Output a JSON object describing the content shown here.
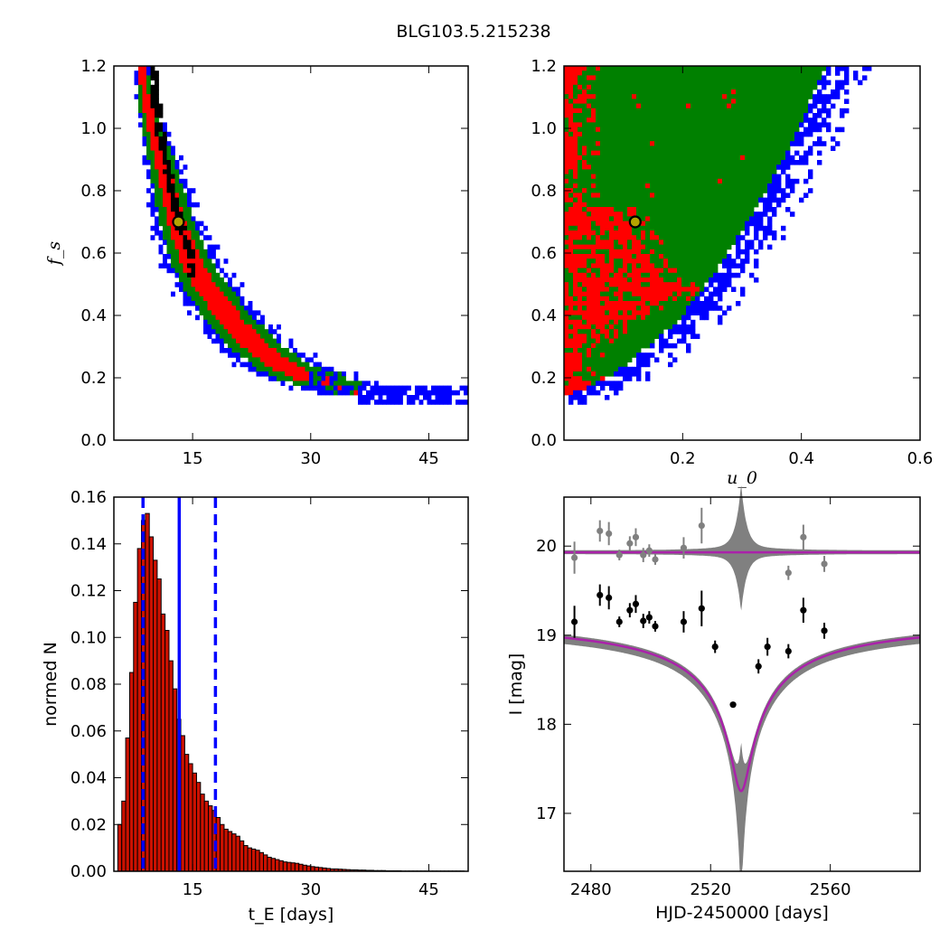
{
  "figure": {
    "title": "BLG103.5.215238"
  },
  "chart_data": [
    {
      "type": "heatmap",
      "name": "fs-vs-tE",
      "xlabel": "",
      "ylabel": "f_s",
      "xlim": [
        5,
        50
      ],
      "ylim": [
        0.0,
        1.2
      ],
      "xticks": [
        15,
        30,
        45
      ],
      "yticks": [
        0.0,
        0.2,
        0.4,
        0.6,
        0.8,
        1.0,
        1.2
      ],
      "levels": [
        "black",
        "red",
        "green",
        "blue"
      ],
      "ridge": [
        [
          8.5,
          1.2
        ],
        [
          9,
          1.1
        ],
        [
          10,
          1.0
        ],
        [
          11,
          0.9
        ],
        [
          12,
          0.8
        ],
        [
          13,
          0.7
        ],
        [
          14,
          0.63
        ],
        [
          15,
          0.56
        ],
        [
          17,
          0.48
        ],
        [
          20,
          0.38
        ],
        [
          23,
          0.3
        ],
        [
          27,
          0.23
        ],
        [
          31,
          0.19
        ],
        [
          36,
          0.16
        ],
        [
          42,
          0.14
        ],
        [
          49,
          0.13
        ]
      ],
      "black_ridge": [
        [
          10,
          1.18
        ],
        [
          10.5,
          1.05
        ],
        [
          11.5,
          0.9
        ],
        [
          12.5,
          0.78
        ],
        [
          13.5,
          0.68
        ],
        [
          15,
          0.58
        ]
      ],
      "best_fit": {
        "x": 13.2,
        "y": 0.7
      }
    },
    {
      "type": "heatmap",
      "name": "fs-vs-u0",
      "xlabel": "u_0",
      "ylabel": "",
      "xlim": [
        0.0,
        0.6
      ],
      "ylim": [
        0.0,
        1.2
      ],
      "xticks": [
        0.2,
        0.4,
        0.6
      ],
      "yticks": [
        0.0,
        0.2,
        0.4,
        0.6,
        0.8,
        1.0,
        1.2
      ],
      "green_boundary": [
        [
          0.0,
          0.13
        ],
        [
          0.05,
          0.17
        ],
        [
          0.1,
          0.22
        ],
        [
          0.15,
          0.3
        ],
        [
          0.2,
          0.38
        ],
        [
          0.25,
          0.5
        ],
        [
          0.3,
          0.64
        ],
        [
          0.35,
          0.8
        ],
        [
          0.4,
          0.98
        ],
        [
          0.45,
          1.2
        ]
      ],
      "red_region_u0_max": 0.22,
      "best_fit": {
        "x": 0.12,
        "y": 0.7
      }
    },
    {
      "type": "bar",
      "name": "tE-histogram",
      "xlabel": "t_E [days]",
      "ylabel": "normed N",
      "xlim": [
        5,
        50
      ],
      "ylim": [
        0.0,
        0.16
      ],
      "xticks": [
        15,
        30,
        45
      ],
      "yticks": [
        0.0,
        0.02,
        0.04,
        0.06,
        0.08,
        0.1,
        0.12,
        0.14,
        0.16
      ],
      "bin_start": 5.5,
      "bin_width": 0.5,
      "values": [
        0.02,
        0.03,
        0.057,
        0.085,
        0.115,
        0.138,
        0.15,
        0.153,
        0.143,
        0.133,
        0.125,
        0.11,
        0.103,
        0.09,
        0.078,
        0.065,
        0.058,
        0.05,
        0.046,
        0.042,
        0.038,
        0.033,
        0.03,
        0.028,
        0.026,
        0.023,
        0.02,
        0.018,
        0.017,
        0.016,
        0.015,
        0.013,
        0.011,
        0.01,
        0.0095,
        0.009,
        0.008,
        0.007,
        0.006,
        0.0055,
        0.005,
        0.0045,
        0.004,
        0.0038,
        0.0036,
        0.0034,
        0.003,
        0.0026,
        0.0023,
        0.002,
        0.0018,
        0.0016,
        0.0014,
        0.0012,
        0.001,
        0.001,
        0.0009,
        0.0008,
        0.0007,
        0.0006,
        0.0006,
        0.0005,
        0.0005,
        0.0004,
        0.0004,
        0.0003,
        0.0003,
        0.0003,
        0.0002,
        0.0002,
        0.0002,
        0.0002,
        0.0001,
        0.0001,
        0.0001,
        0.0001,
        0.0001,
        0.0001,
        0.0001,
        0.0001,
        0.0001,
        0.0001,
        0.0001,
        0.0001,
        0.0001,
        0.0001,
        0.0001,
        0.0001
      ],
      "solid_line": 13.3,
      "dashed_lines": [
        8.7,
        17.9
      ]
    },
    {
      "type": "line",
      "name": "light-curve",
      "xlabel": "HJD-2450000 [days]",
      "ylabel": "I [mag]",
      "xlim": [
        2471,
        2590
      ],
      "ylim": [
        20.55,
        16.35
      ],
      "xticks": [
        2480,
        2520,
        2560
      ],
      "yticks": [
        17,
        18,
        19,
        20
      ],
      "model": {
        "t0": 2530.2,
        "peak_mag": 17.25,
        "base_mag": 19.2,
        "width": 5.5
      },
      "model_band_peak": 16.35,
      "residual_baseline": 19.93,
      "points": [
        {
          "x": 2474.5,
          "y": 19.15,
          "e": 0.18
        },
        {
          "x": 2483,
          "y": 19.45,
          "e": 0.12
        },
        {
          "x": 2486,
          "y": 19.42,
          "e": 0.13
        },
        {
          "x": 2489.5,
          "y": 19.15,
          "e": 0.06
        },
        {
          "x": 2493,
          "y": 19.28,
          "e": 0.08
        },
        {
          "x": 2495,
          "y": 19.35,
          "e": 0.1
        },
        {
          "x": 2497.5,
          "y": 19.16,
          "e": 0.08
        },
        {
          "x": 2499.5,
          "y": 19.2,
          "e": 0.07
        },
        {
          "x": 2501.5,
          "y": 19.1,
          "e": 0.06
        },
        {
          "x": 2511,
          "y": 19.15,
          "e": 0.12
        },
        {
          "x": 2517,
          "y": 19.3,
          "e": 0.2
        },
        {
          "x": 2521.5,
          "y": 18.87,
          "e": 0.07
        },
        {
          "x": 2527.5,
          "y": 18.22,
          "e": 0.03
        },
        {
          "x": 2536,
          "y": 18.65,
          "e": 0.08
        },
        {
          "x": 2539,
          "y": 18.87,
          "e": 0.1
        },
        {
          "x": 2546,
          "y": 18.82,
          "e": 0.08
        },
        {
          "x": 2551,
          "y": 19.28,
          "e": 0.14
        },
        {
          "x": 2558,
          "y": 19.05,
          "e": 0.09
        }
      ],
      "residuals": [
        {
          "x": 2474.5,
          "y": 19.87,
          "e": 0.18
        },
        {
          "x": 2483,
          "y": 20.17,
          "e": 0.12
        },
        {
          "x": 2486,
          "y": 20.14,
          "e": 0.13
        },
        {
          "x": 2489.5,
          "y": 19.9,
          "e": 0.06
        },
        {
          "x": 2493,
          "y": 20.03,
          "e": 0.08
        },
        {
          "x": 2495,
          "y": 20.1,
          "e": 0.1
        },
        {
          "x": 2497.5,
          "y": 19.9,
          "e": 0.08
        },
        {
          "x": 2499.5,
          "y": 19.95,
          "e": 0.07
        },
        {
          "x": 2501.5,
          "y": 19.85,
          "e": 0.06
        },
        {
          "x": 2511,
          "y": 19.98,
          "e": 0.12
        },
        {
          "x": 2517,
          "y": 20.23,
          "e": 0.2
        },
        {
          "x": 2546,
          "y": 19.7,
          "e": 0.08
        },
        {
          "x": 2551,
          "y": 20.1,
          "e": 0.14
        },
        {
          "x": 2558,
          "y": 19.8,
          "e": 0.09
        }
      ]
    }
  ],
  "colors": {
    "black": "#000000",
    "red": "#ff0000",
    "green": "#008000",
    "blue": "#0000ff",
    "bar_fill": "#cc1100",
    "purple": "#aa22aa",
    "gray": "#808080",
    "marker_fill": "#b5a400"
  }
}
